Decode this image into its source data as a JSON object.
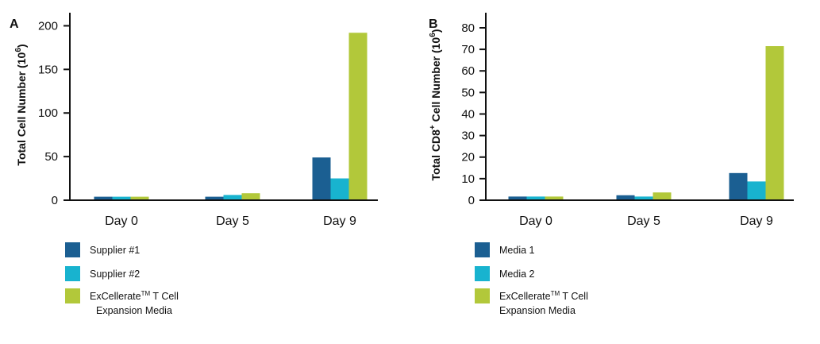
{
  "chart_data": [
    {
      "panel": "A",
      "type": "bar",
      "categories": [
        "Day 0",
        "Day 5",
        "Day 9"
      ],
      "ylabel": "Total Cell Number (10",
      "ylabel_sup": "6",
      "ylabel_end": ")",
      "ylim": [
        0,
        215
      ],
      "yticks": [
        0,
        50,
        100,
        150,
        200
      ],
      "series": [
        {
          "name": "Supplier #1",
          "legend_line2": "",
          "color": "#1b5f92",
          "values": [
            4,
            4,
            49
          ]
        },
        {
          "name": "Supplier #2",
          "legend_line2": "",
          "color": "#18b3cf",
          "values": [
            4,
            6,
            25
          ]
        },
        {
          "name": "ExCellerate",
          "name_sup": "TM",
          "name_rest": " T Cell",
          "legend_line2": "Expansion Media",
          "color": "#b2c83a",
          "values": [
            4,
            8,
            192
          ]
        }
      ],
      "grid": false,
      "legend": "bottom-left"
    },
    {
      "panel": "B",
      "type": "bar",
      "categories": [
        "Day 0",
        "Day 5",
        "Day 9"
      ],
      "ylabel": "Total CD8",
      "ylabel_sup": "+",
      "ylabel_mid": " Cell Number (10",
      "ylabel_sup2": "6",
      "ylabel_end": ")",
      "ylim": [
        0,
        87
      ],
      "yticks": [
        0,
        10,
        20,
        30,
        40,
        50,
        60,
        70,
        80
      ],
      "series": [
        {
          "name": "Media 1",
          "legend_line2": "",
          "color": "#1b5f92",
          "values": [
            1.7,
            2.3,
            12.6
          ]
        },
        {
          "name": "Media 2",
          "legend_line2": "",
          "color": "#18b3cf",
          "values": [
            1.7,
            1.7,
            8.7
          ]
        },
        {
          "name": "ExCellerate",
          "name_sup": "TM",
          "name_rest": " T Cell",
          "legend_line2": "Expansion Media",
          "color": "#b2c83a",
          "values": [
            1.7,
            3.6,
            71.5
          ]
        }
      ],
      "grid": false,
      "legend": "bottom-left"
    }
  ]
}
